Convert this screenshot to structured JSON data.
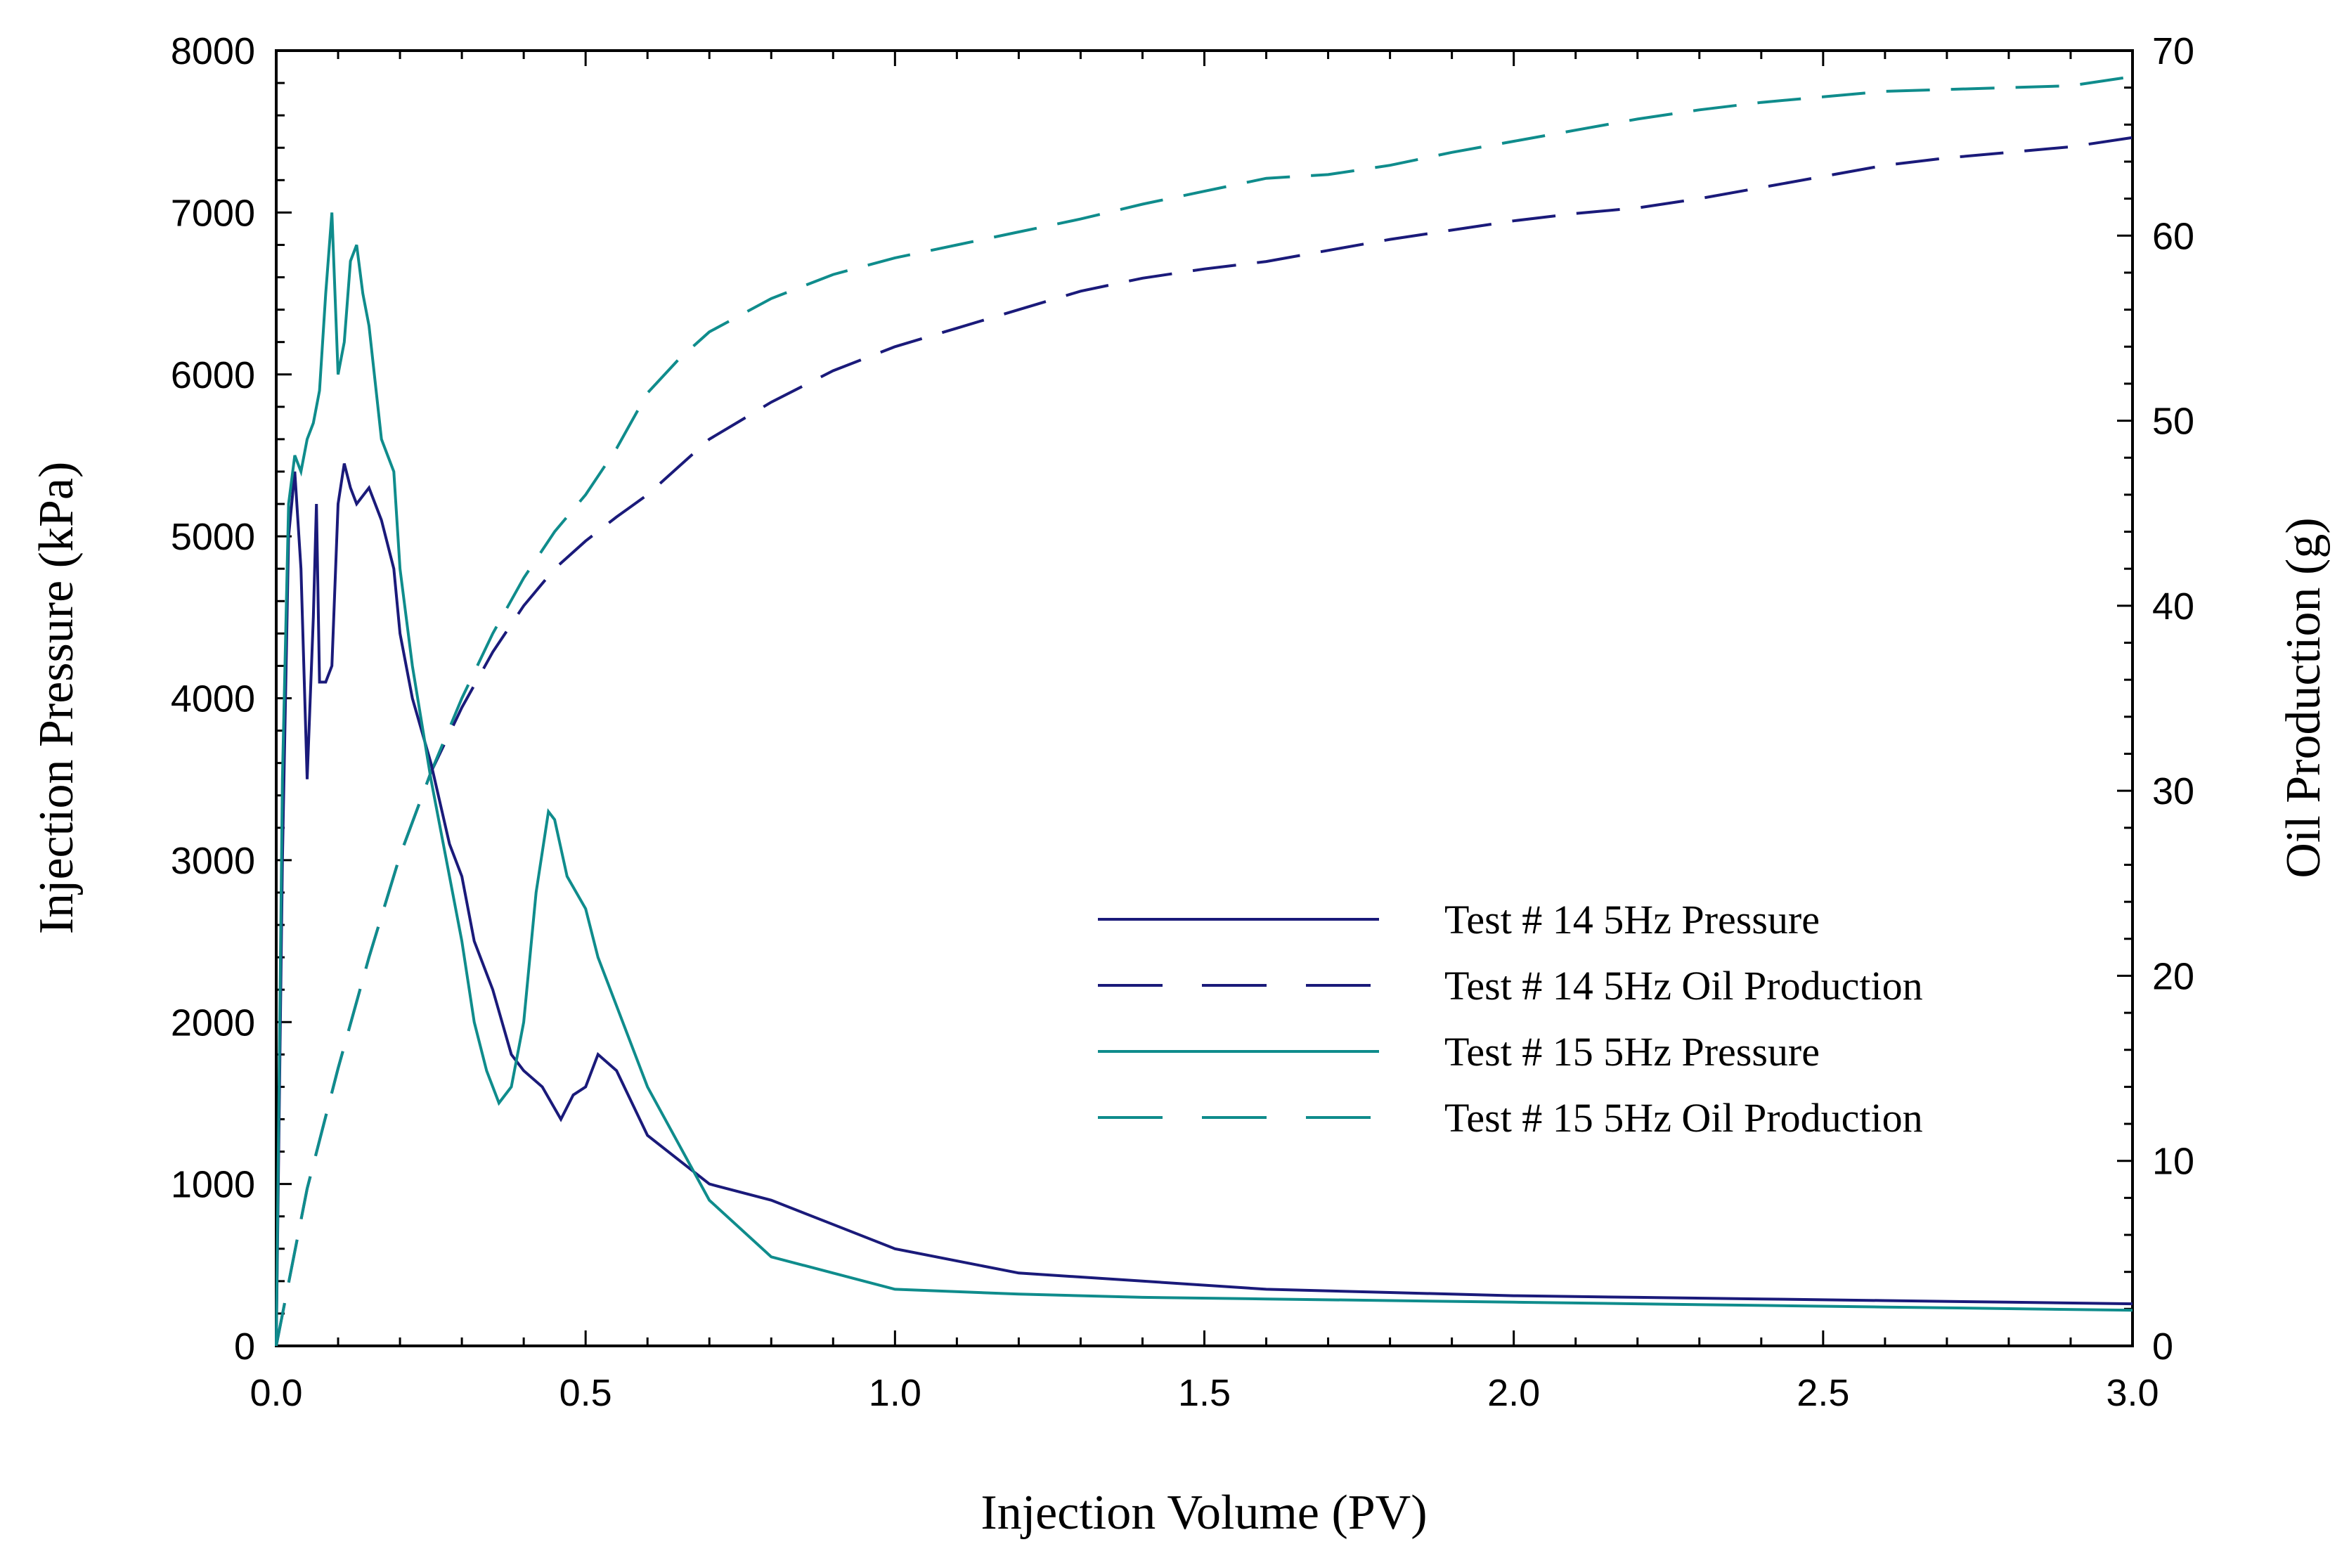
{
  "chart_data": {
    "type": "line",
    "xlabel": "Injection Volume (PV)",
    "ylabel_left": "Injection Pressure (kPa)",
    "ylabel_right": "Oil Production (g)",
    "xlim": [
      0.0,
      3.0
    ],
    "ylim_left": [
      0,
      8000
    ],
    "ylim_right": [
      0,
      70
    ],
    "x_ticks": [
      "0.0",
      "0.5",
      "1.0",
      "1.5",
      "2.0",
      "2.5",
      "3.0"
    ],
    "y_left_ticks": [
      "0",
      "1000",
      "2000",
      "3000",
      "4000",
      "5000",
      "6000",
      "7000",
      "8000"
    ],
    "y_right_ticks": [
      "0",
      "10",
      "20",
      "30",
      "40",
      "50",
      "60",
      "70"
    ],
    "legend_placement": "center-right",
    "colors": {
      "test14": "#1a1a7a",
      "test15": "#0f8c8c"
    },
    "series": [
      {
        "name": "Test # 14 5Hz Pressure",
        "axis": "left",
        "style": "solid",
        "color": "#1a1a7a",
        "x": [
          0.0,
          0.01,
          0.02,
          0.03,
          0.04,
          0.05,
          0.06,
          0.065,
          0.07,
          0.08,
          0.09,
          0.1,
          0.11,
          0.12,
          0.13,
          0.15,
          0.17,
          0.19,
          0.2,
          0.22,
          0.25,
          0.28,
          0.3,
          0.32,
          0.35,
          0.38,
          0.4,
          0.43,
          0.46,
          0.48,
          0.5,
          0.52,
          0.55,
          0.6,
          0.7,
          0.8,
          0.9,
          1.0,
          1.2,
          1.4,
          1.6,
          1.8,
          2.0,
          2.2,
          2.4,
          2.6,
          2.8,
          3.0
        ],
        "y": [
          0,
          3000,
          5000,
          5400,
          4800,
          3500,
          4500,
          5200,
          4100,
          4100,
          4200,
          5200,
          5450,
          5300,
          5200,
          5300,
          5100,
          4800,
          4400,
          4000,
          3600,
          3100,
          2900,
          2500,
          2200,
          1800,
          1700,
          1600,
          1400,
          1550,
          1600,
          1800,
          1700,
          1300,
          1000,
          900,
          750,
          600,
          450,
          400,
          350,
          330,
          310,
          300,
          290,
          280,
          270,
          260
        ]
      },
      {
        "name": "Test # 14 5Hz Oil Production",
        "axis": "right",
        "style": "dashed",
        "color": "#1a1a7a",
        "x": [
          0.0,
          0.05,
          0.1,
          0.15,
          0.2,
          0.25,
          0.3,
          0.35,
          0.4,
          0.45,
          0.5,
          0.55,
          0.6,
          0.65,
          0.7,
          0.75,
          0.8,
          0.9,
          1.0,
          1.1,
          1.2,
          1.3,
          1.4,
          1.5,
          1.6,
          1.7,
          1.8,
          1.9,
          2.0,
          2.1,
          2.2,
          2.3,
          2.4,
          2.5,
          2.6,
          2.7,
          2.8,
          2.9,
          3.0
        ],
        "y": [
          0,
          8.5,
          15,
          21,
          26.5,
          31,
          34.5,
          37.5,
          40,
          42,
          43.5,
          44.8,
          46,
          47.5,
          49,
          50,
          51,
          52.7,
          54,
          55,
          56,
          57,
          57.7,
          58.2,
          58.6,
          59.2,
          59.8,
          60.3,
          60.8,
          61.2,
          61.5,
          62,
          62.6,
          63.2,
          63.8,
          64.2,
          64.5,
          64.8,
          65.3
        ]
      },
      {
        "name": "Test # 15 5Hz Pressure",
        "axis": "left",
        "style": "solid",
        "color": "#0f8c8c",
        "x": [
          0.0,
          0.01,
          0.02,
          0.03,
          0.04,
          0.05,
          0.06,
          0.07,
          0.08,
          0.09,
          0.1,
          0.11,
          0.12,
          0.13,
          0.14,
          0.15,
          0.17,
          0.19,
          0.2,
          0.22,
          0.25,
          0.28,
          0.3,
          0.32,
          0.34,
          0.36,
          0.38,
          0.4,
          0.42,
          0.44,
          0.45,
          0.47,
          0.5,
          0.52,
          0.55,
          0.6,
          0.7,
          0.8,
          0.9,
          1.0,
          1.2,
          1.4,
          1.6,
          1.8,
          2.0,
          2.2,
          2.4,
          2.6,
          2.8,
          3.0
        ],
        "y": [
          0,
          3500,
          5200,
          5500,
          5400,
          5600,
          5700,
          5900,
          6500,
          7000,
          6000,
          6200,
          6700,
          6800,
          6500,
          6300,
          5600,
          5400,
          4800,
          4200,
          3500,
          2900,
          2500,
          2000,
          1700,
          1500,
          1600,
          2000,
          2800,
          3300,
          3250,
          2900,
          2700,
          2400,
          2100,
          1600,
          900,
          550,
          450,
          350,
          320,
          300,
          290,
          280,
          270,
          260,
          250,
          240,
          230,
          220
        ]
      },
      {
        "name": "Test # 15 5Hz Oil Production",
        "axis": "right",
        "style": "dashed",
        "color": "#0f8c8c",
        "x": [
          0.0,
          0.05,
          0.1,
          0.15,
          0.2,
          0.25,
          0.3,
          0.35,
          0.4,
          0.45,
          0.5,
          0.55,
          0.6,
          0.65,
          0.7,
          0.75,
          0.8,
          0.9,
          1.0,
          1.1,
          1.2,
          1.3,
          1.4,
          1.5,
          1.6,
          1.7,
          1.8,
          1.9,
          2.0,
          2.1,
          2.2,
          2.3,
          2.4,
          2.5,
          2.6,
          2.7,
          2.8,
          2.9,
          3.0
        ],
        "y": [
          0,
          8.5,
          15,
          21,
          26.5,
          31,
          35,
          38.5,
          41.5,
          44,
          46,
          48.5,
          51.5,
          53.3,
          54.8,
          55.7,
          56.6,
          57.9,
          58.8,
          59.5,
          60.2,
          60.9,
          61.7,
          62.4,
          63.1,
          63.3,
          63.8,
          64.5,
          65.1,
          65.7,
          66.3,
          66.8,
          67.2,
          67.5,
          67.8,
          67.9,
          68.0,
          68.1,
          68.6
        ]
      }
    ]
  }
}
